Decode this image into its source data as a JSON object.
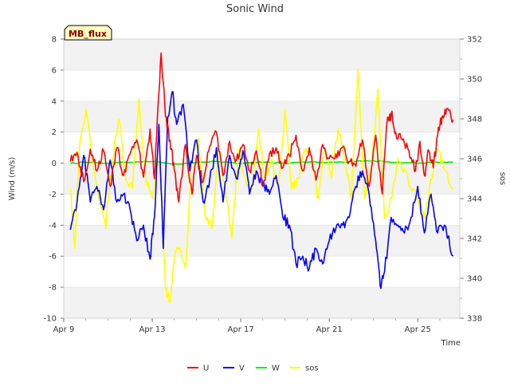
{
  "chart_data": {
    "type": "line",
    "title": "Sonic Wind",
    "badge": "MB_flux",
    "xlabel": "Time",
    "ylabel_left": "Wind (m/s)",
    "ylabel_right": "sos",
    "x_day_range": [
      9.0,
      26.9
    ],
    "x_ticks": [
      {
        "day": 9,
        "label": "Apr 9"
      },
      {
        "day": 13,
        "label": "Apr 13"
      },
      {
        "day": 17,
        "label": "Apr 17"
      },
      {
        "day": 21,
        "label": "Apr 21"
      },
      {
        "day": 25,
        "label": "Apr 25"
      }
    ],
    "ylim_left": [
      -10,
      8
    ],
    "yticks_left": [
      -10,
      -8,
      -6,
      -4,
      -2,
      0,
      2,
      4,
      6,
      8
    ],
    "ylim_right": [
      338,
      352
    ],
    "yticks_right": [
      338,
      340,
      342,
      344,
      346,
      348,
      350,
      352
    ],
    "grid_bands": true,
    "legend_position": "bottom-center",
    "series": [
      {
        "name": "U",
        "axis": "left",
        "color": "#ff0000",
        "x": [
          9.3,
          9.6,
          9.9,
          10.2,
          10.5,
          10.8,
          11.1,
          11.4,
          11.7,
          12.0,
          12.3,
          12.6,
          12.9,
          13.1,
          13.2,
          13.4,
          13.6,
          13.8,
          14.0,
          14.2,
          14.5,
          14.8,
          15.0,
          15.3,
          15.6,
          15.9,
          16.2,
          16.5,
          16.8,
          17.1,
          17.4,
          17.7,
          18.0,
          18.3,
          18.6,
          18.9,
          19.2,
          19.5,
          19.8,
          20.1,
          20.4,
          20.7,
          21.0,
          21.3,
          21.6,
          21.9,
          22.2,
          22.5,
          22.8,
          23.1,
          23.4,
          23.6,
          23.8,
          24.0,
          24.3,
          24.6,
          24.9,
          25.1,
          25.3,
          25.5,
          25.7,
          25.9,
          26.1,
          26.3,
          26.6
        ],
        "y": [
          0.1,
          0.7,
          -1.2,
          0.9,
          -0.5,
          0.8,
          -1.5,
          1.0,
          -0.8,
          0.6,
          1.5,
          -0.9,
          2.2,
          -1.0,
          1.8,
          7.1,
          3.0,
          1.5,
          -0.5,
          -2.5,
          1.2,
          -2.0,
          0.5,
          -1.2,
          1.1,
          2.0,
          -0.8,
          1.4,
          0.2,
          1.2,
          -0.5,
          0.8,
          -1.5,
          0.6,
          1.0,
          -0.3,
          0.5,
          1.8,
          -0.5,
          1.0,
          -1.1,
          1.2,
          0.3,
          0.6,
          1.0,
          0.1,
          -0.2,
          1.5,
          -1.5,
          1.8,
          -2.0,
          2.5,
          3.2,
          2.0,
          1.5,
          0.8,
          -0.5,
          1.4,
          -0.8,
          0.8,
          -0.3,
          1.8,
          3.0,
          3.5,
          2.8
        ]
      },
      {
        "name": "V",
        "axis": "left",
        "color": "#0000ff",
        "x": [
          9.3,
          9.6,
          9.9,
          10.2,
          10.5,
          10.8,
          11.1,
          11.4,
          11.7,
          12.0,
          12.3,
          12.6,
          12.9,
          13.1,
          13.3,
          13.5,
          13.7,
          13.9,
          14.1,
          14.4,
          14.7,
          15.0,
          15.3,
          15.6,
          15.9,
          16.2,
          16.5,
          16.8,
          17.1,
          17.4,
          17.7,
          18.0,
          18.3,
          18.6,
          18.9,
          19.2,
          19.5,
          19.8,
          20.1,
          20.4,
          20.7,
          21.0,
          21.3,
          21.6,
          21.9,
          22.2,
          22.5,
          22.8,
          23.1,
          23.3,
          23.5,
          23.8,
          24.1,
          24.4,
          24.7,
          25.0,
          25.3,
          25.6,
          25.9,
          26.2,
          26.6
        ],
        "y": [
          -4.3,
          -2.5,
          0.5,
          -2.5,
          -1.5,
          -3.0,
          0.2,
          -2.5,
          -2.0,
          -3.0,
          -5.0,
          -4.0,
          -6.2,
          -3.5,
          2.5,
          -5.5,
          3.0,
          4.6,
          2.5,
          3.8,
          -0.5,
          1.5,
          -2.5,
          -1.0,
          1.0,
          -2.5,
          0.5,
          -1.0,
          0.8,
          -2.0,
          -0.5,
          -1.5,
          -2.0,
          -0.8,
          -3.5,
          -4.0,
          -6.5,
          -6.0,
          -6.8,
          -5.5,
          -6.5,
          -5.0,
          -4.2,
          -4.0,
          -3.5,
          -1.5,
          -0.5,
          -2.0,
          -5.0,
          -7.9,
          -7.0,
          -3.5,
          -4.0,
          -4.5,
          -3.5,
          -1.5,
          -4.5,
          -2.0,
          -4.5,
          -4.0,
          -6.0
        ]
      },
      {
        "name": "W",
        "axis": "left",
        "color": "#00ee00",
        "x": [
          9.3,
          10.0,
          11.0,
          12.0,
          13.0,
          14.0,
          15.0,
          16.0,
          17.0,
          18.0,
          19.0,
          20.0,
          21.0,
          22.0,
          23.0,
          24.0,
          25.0,
          26.0,
          26.6
        ],
        "y": [
          0.0,
          0.05,
          0.0,
          0.05,
          0.1,
          -0.05,
          0.05,
          0.1,
          0.0,
          0.05,
          0.0,
          0.05,
          0.05,
          0.1,
          0.15,
          0.05,
          0.0,
          0.05,
          0.08
        ]
      },
      {
        "name": "sos",
        "axis": "right",
        "color": "#ffff00",
        "x": [
          9.3,
          9.5,
          9.7,
          10.0,
          10.3,
          10.6,
          10.9,
          11.2,
          11.5,
          11.8,
          12.1,
          12.4,
          12.7,
          13.0,
          13.2,
          13.4,
          13.6,
          13.8,
          14.0,
          14.2,
          14.5,
          14.8,
          15.1,
          15.4,
          15.7,
          16.0,
          16.3,
          16.6,
          16.9,
          17.2,
          17.5,
          17.8,
          18.1,
          18.4,
          18.7,
          19.0,
          19.3,
          19.6,
          19.9,
          20.2,
          20.5,
          20.8,
          21.1,
          21.4,
          21.7,
          22.0,
          22.3,
          22.6,
          22.9,
          23.2,
          23.5,
          23.8,
          24.1,
          24.4,
          24.7,
          25.0,
          25.3,
          25.6,
          25.9,
          26.2,
          26.6
        ],
        "y": [
          344.5,
          341.5,
          346.5,
          348.5,
          346,
          344,
          342.5,
          346,
          348,
          345,
          344.5,
          349,
          345,
          344,
          346,
          345,
          339.5,
          338.8,
          341,
          341.5,
          340.5,
          346,
          347,
          343,
          342.5,
          346.5,
          344.5,
          342,
          346.5,
          345,
          344.5,
          347.5,
          345,
          346,
          344.5,
          348.5,
          344.5,
          345,
          346.5,
          346,
          344,
          346.5,
          345,
          347.5,
          346,
          344,
          350.5,
          344,
          345.5,
          349.5,
          343,
          344,
          346,
          345.5,
          344.5,
          344,
          343,
          345,
          346.5,
          345.5,
          344.5
        ]
      }
    ]
  }
}
